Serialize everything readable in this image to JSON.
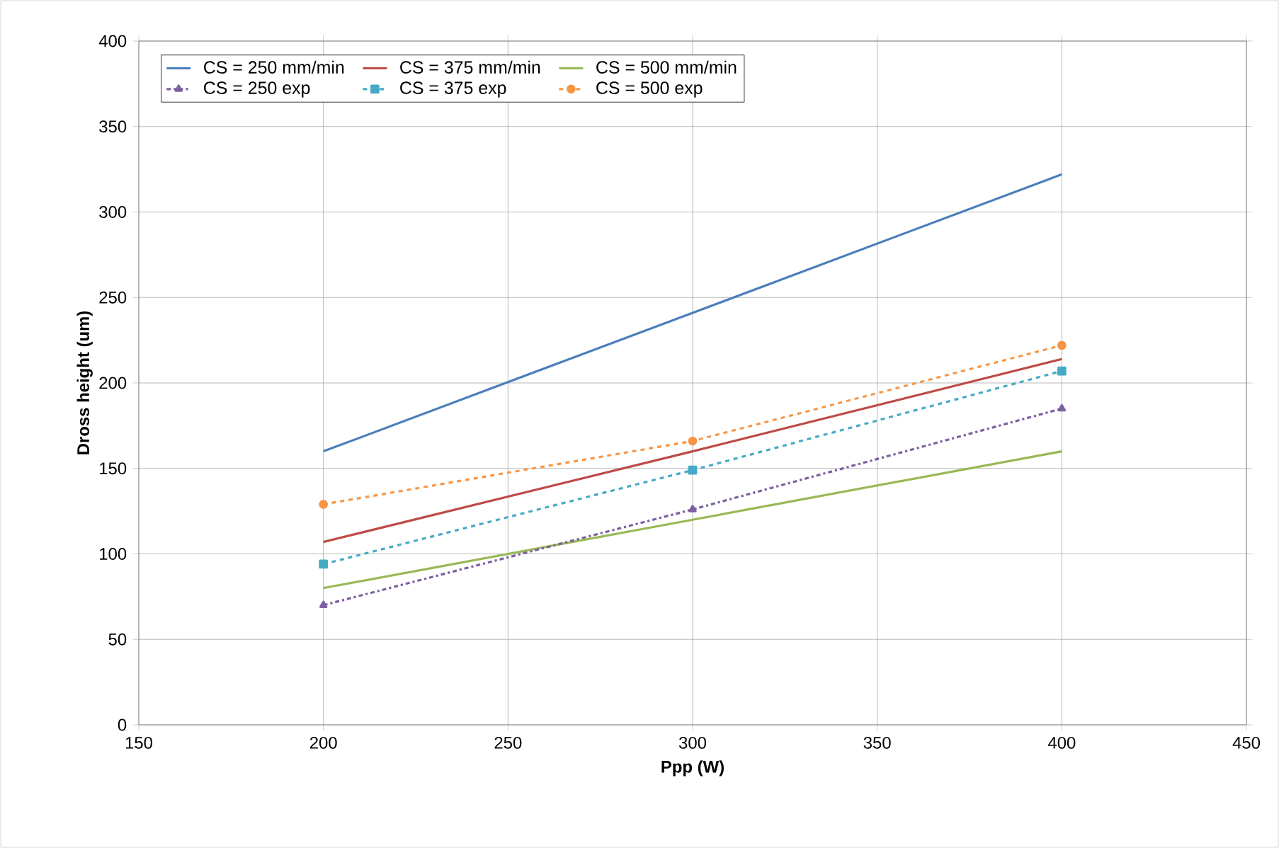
{
  "chart_data": {
    "type": "line",
    "xlabel": "Ppp (W)",
    "ylabel": "Dross height (um)",
    "xlim": [
      150,
      450
    ],
    "xticks": [
      150,
      200,
      250,
      300,
      350,
      400,
      450
    ],
    "ylim": [
      0,
      400
    ],
    "yticks": [
      0,
      50,
      100,
      150,
      200,
      250,
      300,
      350,
      400
    ],
    "grid": true,
    "legend": "top left",
    "x": [
      200,
      300,
      400
    ],
    "series": [
      {
        "name": "CS = 250 mm/min",
        "color": "#4a7ebb",
        "values": [
          160,
          241,
          322
        ],
        "line_style": "solid",
        "marker": "none"
      },
      {
        "name": "CS = 375 mm/min",
        "color": "#be4b48",
        "values": [
          107,
          160,
          214
        ],
        "line_style": "solid",
        "marker": "none"
      },
      {
        "name": "CS = 500 mm/min",
        "color": "#98b954",
        "values": [
          80,
          120,
          160
        ],
        "line_style": "solid",
        "marker": "none"
      },
      {
        "name": "CS = 250 exp",
        "color": "#7d60a0",
        "values": [
          70,
          126,
          185
        ],
        "line_style": "dashdot",
        "marker": "triangle"
      },
      {
        "name": "CS = 375 exp",
        "color": "#46aac5",
        "values": [
          94,
          149,
          207
        ],
        "line_style": "dashed",
        "marker": "square"
      },
      {
        "name": "CS = 500 exp",
        "color": "#f79646",
        "values": [
          129,
          166,
          222
        ],
        "line_style": "dashed",
        "marker": "circle"
      }
    ]
  }
}
